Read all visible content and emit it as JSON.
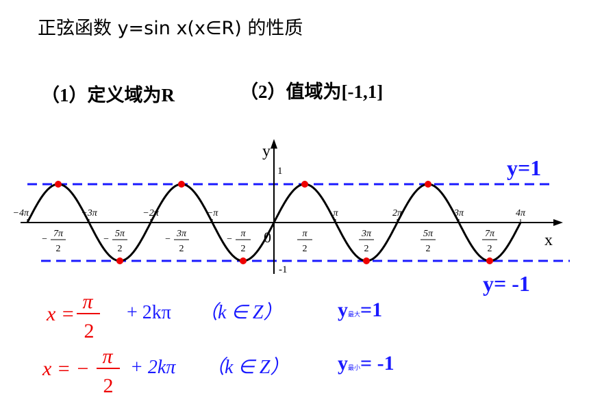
{
  "title": "正弦函数 y=sin x(x∈R) 的性质",
  "properties": [
    "（1）定义域为R",
    "（2）值域为[-1,1]"
  ],
  "graph": {
    "x_label": "x",
    "y_label": "y",
    "origin": "0",
    "y_one": "1",
    "y_minus_one": "-1",
    "pi_ticks": [
      {
        "label": "−4π",
        "k": -4
      },
      {
        "label": "−3π",
        "k": -3
      },
      {
        "label": "−2π",
        "k": -2
      },
      {
        "label": "−π",
        "k": -1
      },
      {
        "label": "π",
        "k": 1
      },
      {
        "label": "2π",
        "k": 2
      },
      {
        "label": "3π",
        "k": 3
      },
      {
        "label": "4π",
        "k": 4
      }
    ],
    "half_ticks": [
      {
        "sign": "−",
        "num": "7π",
        "den": "2",
        "k": -3.5
      },
      {
        "sign": "−",
        "num": "5π",
        "den": "2",
        "k": -2.5
      },
      {
        "sign": "−",
        "num": "3π",
        "den": "2",
        "k": -1.5
      },
      {
        "sign": "−",
        "num": "π",
        "den": "2",
        "k": -0.5
      },
      {
        "num": "π",
        "den": "2",
        "k": 0.5
      },
      {
        "num": "3π",
        "den": "2",
        "k": 1.5
      },
      {
        "num": "5π",
        "den": "2",
        "k": 2.5
      },
      {
        "num": "7π",
        "den": "2",
        "k": 3.5
      }
    ],
    "line_max": "y=1",
    "line_min": "y= -1"
  },
  "formula_max": {
    "lhs": "x =",
    "num": "π",
    "den": "2",
    "rest": "+ 2kπ",
    "cond": "（k ∈ Z）",
    "y": "y",
    "sub": "最大",
    "val": "=1"
  },
  "formula_min": {
    "lhs": "x = −",
    "num": "π",
    "den": "2",
    "rest": "+ 2kπ",
    "cond": "（k ∈ Z）",
    "y": "y",
    "sub": "最小",
    "val": "= -1"
  }
}
